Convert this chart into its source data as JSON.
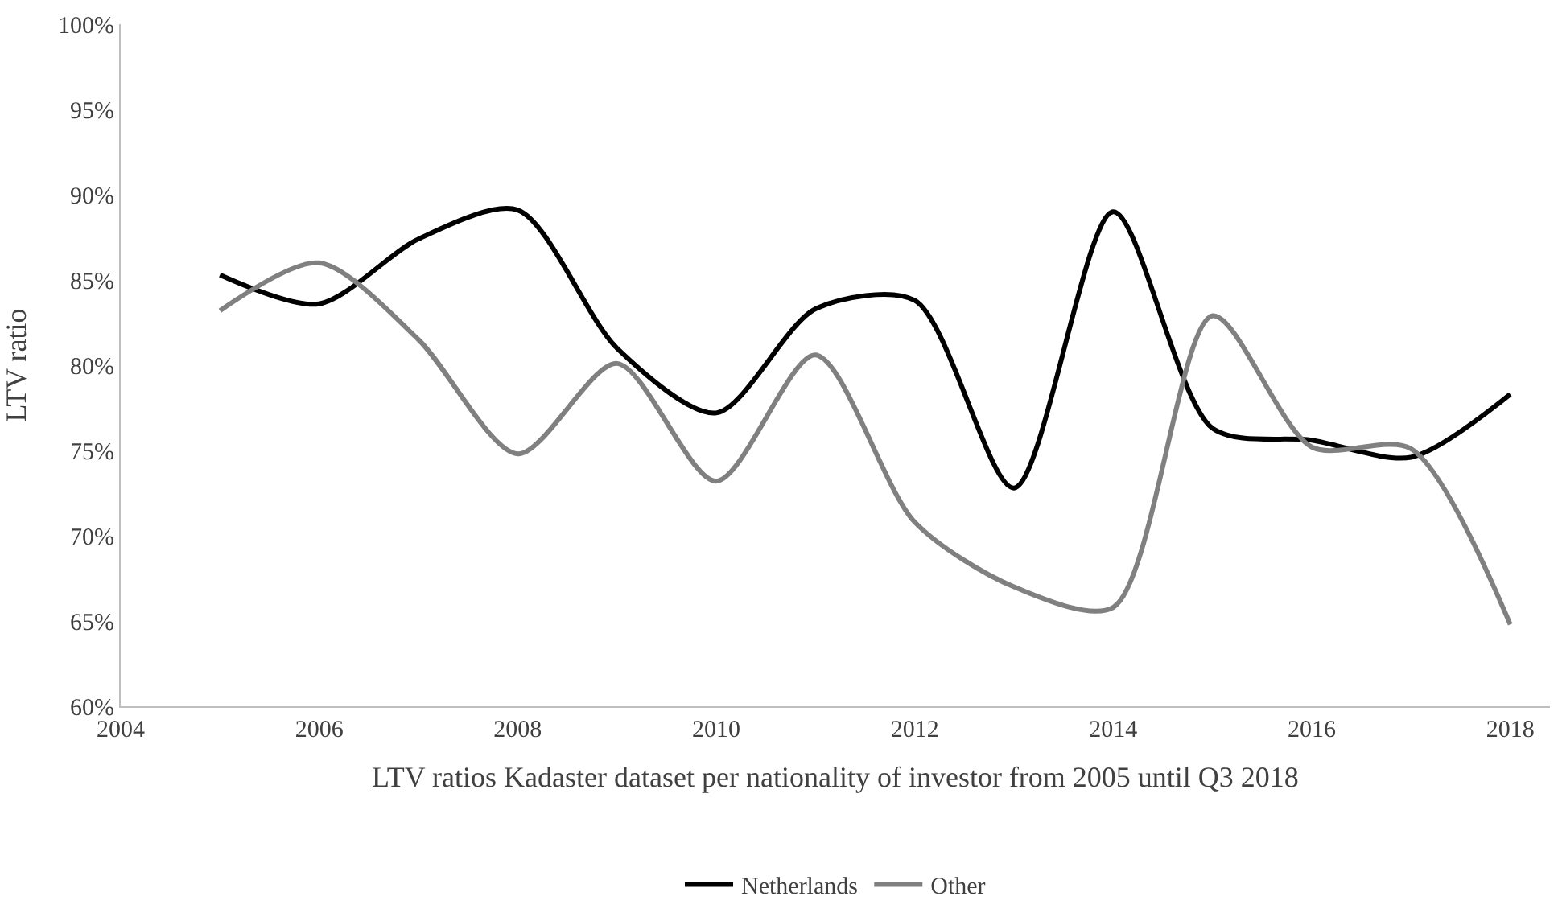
{
  "chart_data": {
    "type": "line",
    "xlabel": "LTV ratios Kadaster dataset per nationality of investor from 2005 until Q3 2018",
    "ylabel": "LTV ratio",
    "x": [
      2005,
      2006,
      2007,
      2008,
      2009,
      2010,
      2011,
      2012,
      2013,
      2014,
      2015,
      2016,
      2017,
      2018
    ],
    "series": [
      {
        "name": "Netherlands",
        "color": "#000000",
        "values": [
          85.3,
          83.6,
          87.4,
          89.1,
          81.0,
          77.2,
          83.3,
          83.8,
          72.8,
          89.0,
          76.3,
          75.6,
          74.6,
          78.3
        ]
      },
      {
        "name": "Other",
        "color": "#808080",
        "values": [
          83.2,
          86.0,
          81.5,
          74.8,
          80.1,
          73.2,
          80.6,
          70.8,
          67.0,
          65.8,
          82.9,
          75.2,
          75.1,
          64.8
        ]
      }
    ],
    "xlim": [
      2004,
      2018.4
    ],
    "xticks": [
      2004,
      2006,
      2008,
      2010,
      2012,
      2014,
      2016,
      2018
    ],
    "ylim": [
      60,
      100
    ],
    "yticks": [
      {
        "value": 60,
        "label": "60%"
      },
      {
        "value": 65,
        "label": "65%"
      },
      {
        "value": 70,
        "label": "70%"
      },
      {
        "value": 75,
        "label": "75%"
      },
      {
        "value": 80,
        "label": "80%"
      },
      {
        "value": 85,
        "label": "85%"
      },
      {
        "value": 90,
        "label": "90%"
      },
      {
        "value": 95,
        "label": "95%"
      },
      {
        "value": 100,
        "label": "100%"
      }
    ],
    "legend": "bottom",
    "marker": "none",
    "line_style": "solid"
  }
}
